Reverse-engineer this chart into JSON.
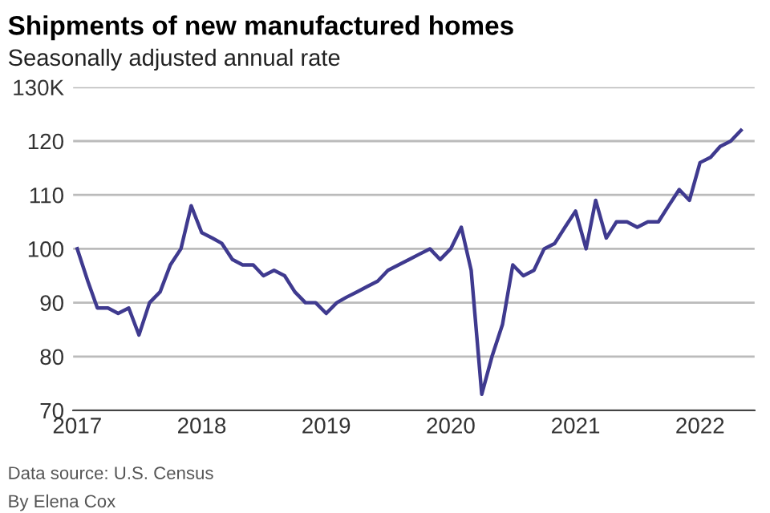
{
  "chart_data": {
    "type": "line",
    "title": "Shipments of new manufactured homes",
    "subtitle": "Seasonally adjusted annual rate",
    "x": [
      "2017-01",
      "2017-02",
      "2017-03",
      "2017-04",
      "2017-05",
      "2017-06",
      "2017-07",
      "2017-08",
      "2017-09",
      "2017-10",
      "2017-11",
      "2017-12",
      "2018-01",
      "2018-02",
      "2018-03",
      "2018-04",
      "2018-05",
      "2018-06",
      "2018-07",
      "2018-08",
      "2018-09",
      "2018-10",
      "2018-11",
      "2018-12",
      "2019-01",
      "2019-02",
      "2019-03",
      "2019-04",
      "2019-05",
      "2019-06",
      "2019-07",
      "2019-08",
      "2019-09",
      "2019-10",
      "2019-11",
      "2019-12",
      "2020-01",
      "2020-02",
      "2020-03",
      "2020-04",
      "2020-05",
      "2020-06",
      "2020-07",
      "2020-08",
      "2020-09",
      "2020-10",
      "2020-11",
      "2020-12",
      "2021-01",
      "2021-02",
      "2021-03",
      "2021-04",
      "2021-05",
      "2021-06",
      "2021-07",
      "2021-08",
      "2021-09",
      "2021-10",
      "2021-11",
      "2021-12",
      "2022-01",
      "2022-02",
      "2022-03",
      "2022-04",
      "2022-05"
    ],
    "series": [
      {
        "color": "#3f3a8f",
        "values": [
          100,
          94,
          89,
          89,
          88,
          89,
          84,
          90,
          92,
          97,
          100,
          108,
          103,
          102,
          101,
          98,
          97,
          97,
          95,
          96,
          95,
          92,
          90,
          90,
          88,
          90,
          91,
          92,
          93,
          94,
          96,
          97,
          98,
          99,
          100,
          98,
          100,
          104,
          96,
          73,
          80,
          86,
          97,
          95,
          96,
          100,
          101,
          104,
          107,
          100,
          109,
          102,
          105,
          105,
          104,
          105,
          105,
          108,
          111,
          109,
          116,
          117,
          119,
          120,
          122
        ]
      }
    ],
    "xlim": [
      "2016-12-20",
      "2022-06-10"
    ],
    "xticks": [
      {
        "value": "2017-01-01",
        "label": "2017"
      },
      {
        "value": "2018-01-01",
        "label": "2018"
      },
      {
        "value": "2019-01-01",
        "label": "2019"
      },
      {
        "value": "2020-01-01",
        "label": "2020"
      },
      {
        "value": "2021-01-01",
        "label": "2021"
      },
      {
        "value": "2022-01-01",
        "label": "2022"
      }
    ],
    "ylim": [
      70,
      130
    ],
    "yticks": [
      70,
      80,
      90,
      100,
      110,
      120,
      {
        "value": 130,
        "label": "130K"
      }
    ],
    "grid": "y",
    "legend": false,
    "annotations": [
      "Data source: U.S. Census",
      "By Elena Cox"
    ]
  }
}
